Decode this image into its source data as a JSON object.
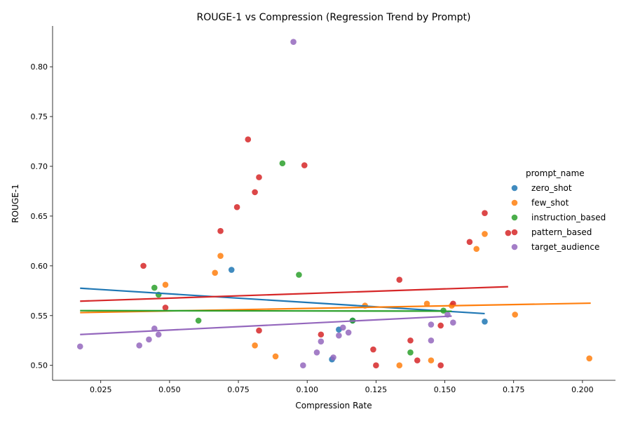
{
  "chart_data": {
    "type": "scatter",
    "title": "ROUGE-1 vs Compression (Regression Trend by Prompt)",
    "xlabel": "Compression Rate",
    "ylabel": "ROUGE-1",
    "xlim": [
      0.0075,
      0.212
    ],
    "ylim": [
      0.485,
      0.841
    ],
    "x_ticks": [
      0.025,
      0.05,
      0.075,
      0.1,
      0.125,
      0.15,
      0.175,
      0.2
    ],
    "x_tick_labels": [
      "0.025",
      "0.050",
      "0.075",
      "0.100",
      "0.125",
      "0.150",
      "0.175",
      "0.200"
    ],
    "y_ticks": [
      0.5,
      0.55,
      0.6,
      0.65,
      0.7,
      0.75,
      0.8
    ],
    "y_tick_labels": [
      "0.50",
      "0.55",
      "0.60",
      "0.65",
      "0.70",
      "0.75",
      "0.80"
    ],
    "grid": false,
    "legend": {
      "title": "prompt_name",
      "placement": "right"
    },
    "series": [
      {
        "name": "zero_shot",
        "color": "#1f77b4",
        "points": [
          [
            0.0725,
            0.596
          ],
          [
            0.1115,
            0.536
          ],
          [
            0.1165,
            0.545
          ],
          [
            0.109,
            0.506
          ],
          [
            0.1645,
            0.544
          ]
        ],
        "trend": [
          [
            0.0175,
            0.5775
          ],
          [
            0.1645,
            0.552
          ]
        ]
      },
      {
        "name": "few_shot",
        "color": "#ff7f0e",
        "points": [
          [
            0.0685,
            0.61
          ],
          [
            0.0665,
            0.593
          ],
          [
            0.0485,
            0.581
          ],
          [
            0.081,
            0.52
          ],
          [
            0.0885,
            0.509
          ],
          [
            0.121,
            0.56
          ],
          [
            0.1435,
            0.562
          ],
          [
            0.1525,
            0.56
          ],
          [
            0.1645,
            0.632
          ],
          [
            0.1615,
            0.617
          ],
          [
            0.1755,
            0.551
          ],
          [
            0.145,
            0.505
          ],
          [
            0.1335,
            0.5
          ],
          [
            0.2025,
            0.507
          ]
        ],
        "trend": [
          [
            0.0175,
            0.553
          ],
          [
            0.203,
            0.5625
          ]
        ]
      },
      {
        "name": "instruction_based",
        "color": "#2ca02c",
        "points": [
          [
            0.091,
            0.703
          ],
          [
            0.097,
            0.591
          ],
          [
            0.0445,
            0.578
          ],
          [
            0.046,
            0.571
          ],
          [
            0.0605,
            0.545
          ],
          [
            0.1165,
            0.545
          ],
          [
            0.1375,
            0.513
          ],
          [
            0.1495,
            0.555
          ]
        ],
        "trend": [
          [
            0.0175,
            0.555
          ],
          [
            0.1525,
            0.5545
          ]
        ]
      },
      {
        "name": "pattern_based",
        "color": "#d62728",
        "points": [
          [
            0.0785,
            0.727
          ],
          [
            0.099,
            0.701
          ],
          [
            0.0825,
            0.689
          ],
          [
            0.081,
            0.674
          ],
          [
            0.0745,
            0.659
          ],
          [
            0.0685,
            0.635
          ],
          [
            0.0405,
            0.6
          ],
          [
            0.0485,
            0.558
          ],
          [
            0.0825,
            0.535
          ],
          [
            0.105,
            0.531
          ],
          [
            0.1335,
            0.586
          ],
          [
            0.1645,
            0.653
          ],
          [
            0.159,
            0.624
          ],
          [
            0.173,
            0.633
          ],
          [
            0.153,
            0.562
          ],
          [
            0.1485,
            0.54
          ],
          [
            0.1375,
            0.525
          ],
          [
            0.124,
            0.516
          ],
          [
            0.14,
            0.505
          ],
          [
            0.125,
            0.5
          ],
          [
            0.1485,
            0.5
          ]
        ],
        "trend": [
          [
            0.0175,
            0.5645
          ],
          [
            0.173,
            0.579
          ]
        ]
      },
      {
        "name": "target_audience",
        "color": "#9467bd",
        "points": [
          [
            0.095,
            0.825
          ],
          [
            0.0175,
            0.519
          ],
          [
            0.039,
            0.52
          ],
          [
            0.0425,
            0.526
          ],
          [
            0.0445,
            0.537
          ],
          [
            0.046,
            0.531
          ],
          [
            0.0985,
            0.5
          ],
          [
            0.1035,
            0.513
          ],
          [
            0.105,
            0.524
          ],
          [
            0.1095,
            0.508
          ],
          [
            0.1115,
            0.53
          ],
          [
            0.113,
            0.538
          ],
          [
            0.115,
            0.533
          ],
          [
            0.145,
            0.541
          ],
          [
            0.145,
            0.525
          ],
          [
            0.151,
            0.551
          ],
          [
            0.153,
            0.543
          ]
        ],
        "trend": [
          [
            0.0175,
            0.531
          ],
          [
            0.1525,
            0.5495
          ]
        ]
      }
    ]
  }
}
